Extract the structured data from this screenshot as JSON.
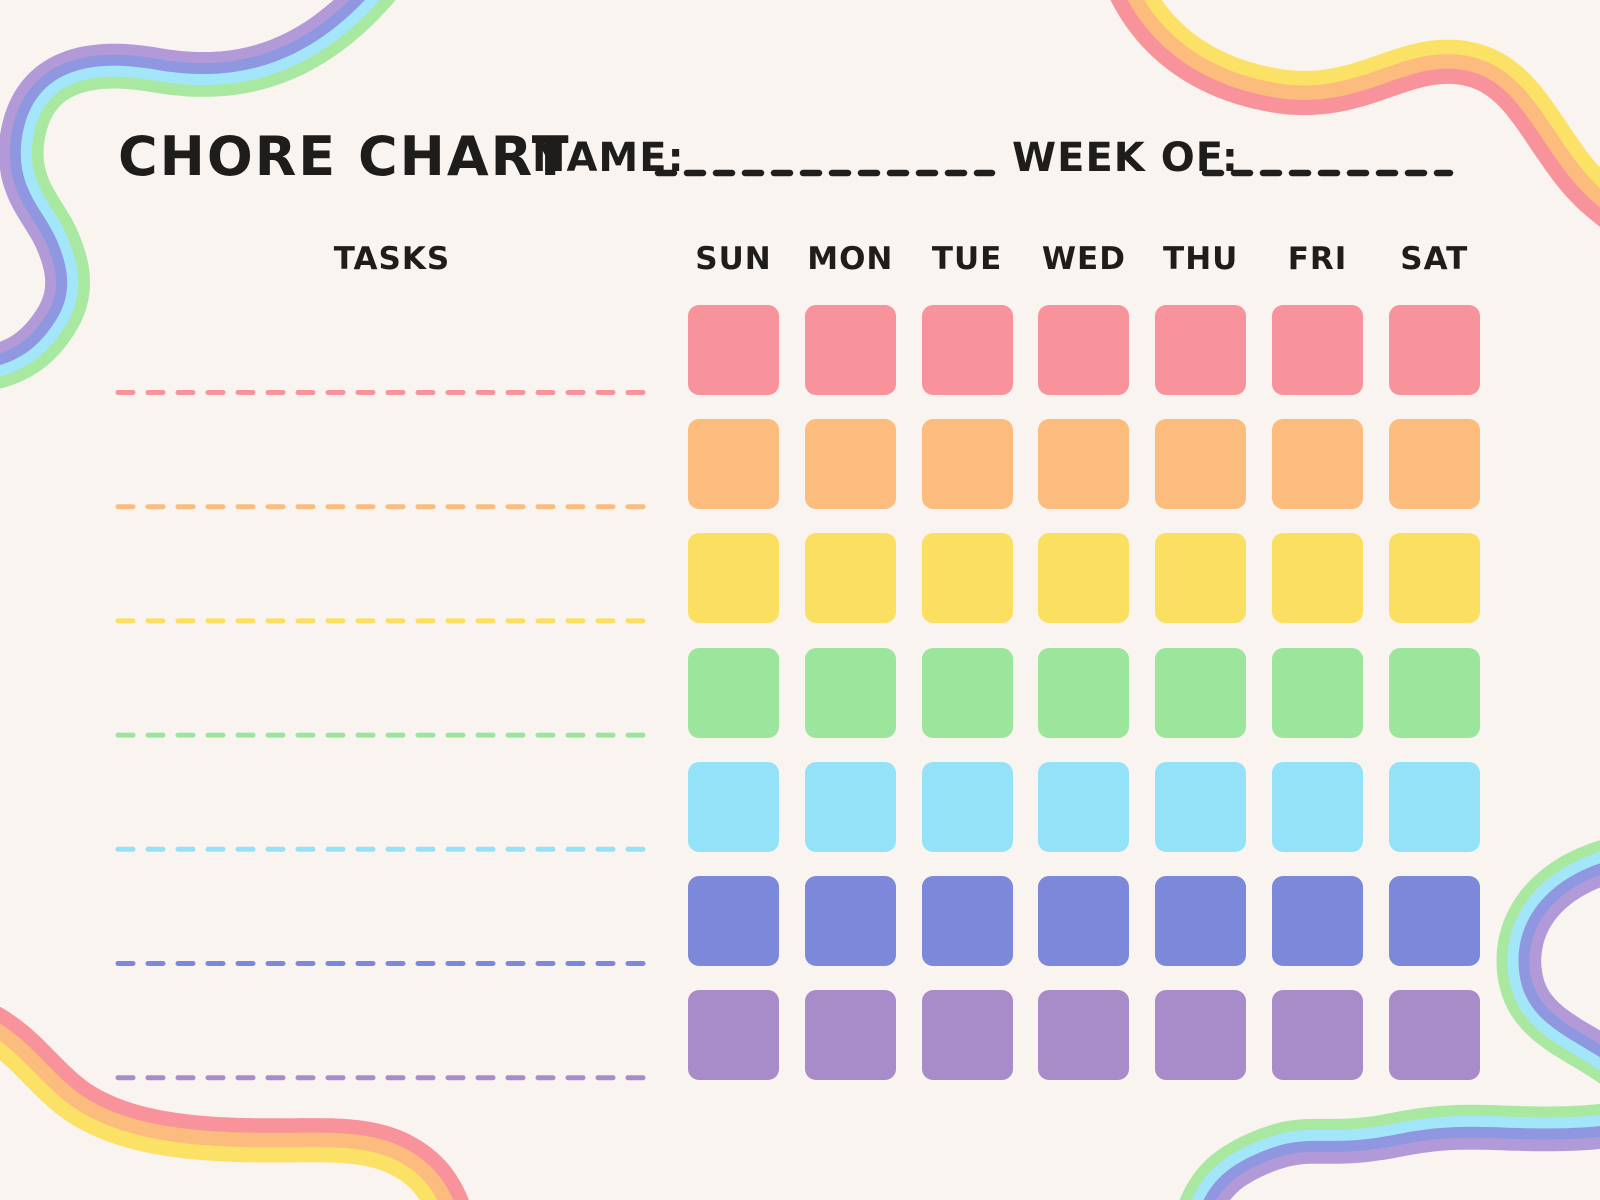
{
  "title": "CHORE CHART",
  "fields": {
    "name_label": "NAME:",
    "name_value": "",
    "week_label": "WEEK OF:",
    "week_value": ""
  },
  "table": {
    "tasks_header": "TASKS",
    "day_headers": [
      "SUN",
      "MON",
      "TUE",
      "WED",
      "THU",
      "FRI",
      "SAT"
    ],
    "rows": [
      {
        "task_value": "",
        "color_name": "pink",
        "color": "#f8939b"
      },
      {
        "task_value": "",
        "color_name": "orange",
        "color": "#fbbc7e"
      },
      {
        "task_value": "",
        "color_name": "yellow",
        "color": "#fbdf60"
      },
      {
        "task_value": "",
        "color_name": "green",
        "color": "#9ce59d"
      },
      {
        "task_value": "",
        "color_name": "sky-blue",
        "color": "#93e2f8"
      },
      {
        "task_value": "",
        "color_name": "periwinkle",
        "color": "#7c88da"
      },
      {
        "task_value": "",
        "color_name": "purple",
        "color": "#a78cc9"
      }
    ]
  },
  "colors": {
    "background": "#faf4f0",
    "text": "#1f1d1b",
    "field_line": "#211f1e"
  },
  "decorations": {
    "ribbons": [
      {
        "name": "top-left-rainbow-ribbon",
        "stripes": [
          "#b29ad8",
          "#8e97e0",
          "#a3e6fa",
          "#a8e8a0"
        ]
      },
      {
        "name": "top-right-rainbow-ribbon",
        "stripes": [
          "#fbe166",
          "#fbbc7e",
          "#f8939b"
        ]
      },
      {
        "name": "bottom-left-rainbow-ribbon",
        "stripes": [
          "#f8939b",
          "#fbbc7e",
          "#fbe166"
        ]
      },
      {
        "name": "bottom-right-rainbow-ribbon",
        "stripes": [
          "#a8e8a0",
          "#a3e6fa",
          "#8e97e0",
          "#b29ad8"
        ]
      }
    ]
  }
}
